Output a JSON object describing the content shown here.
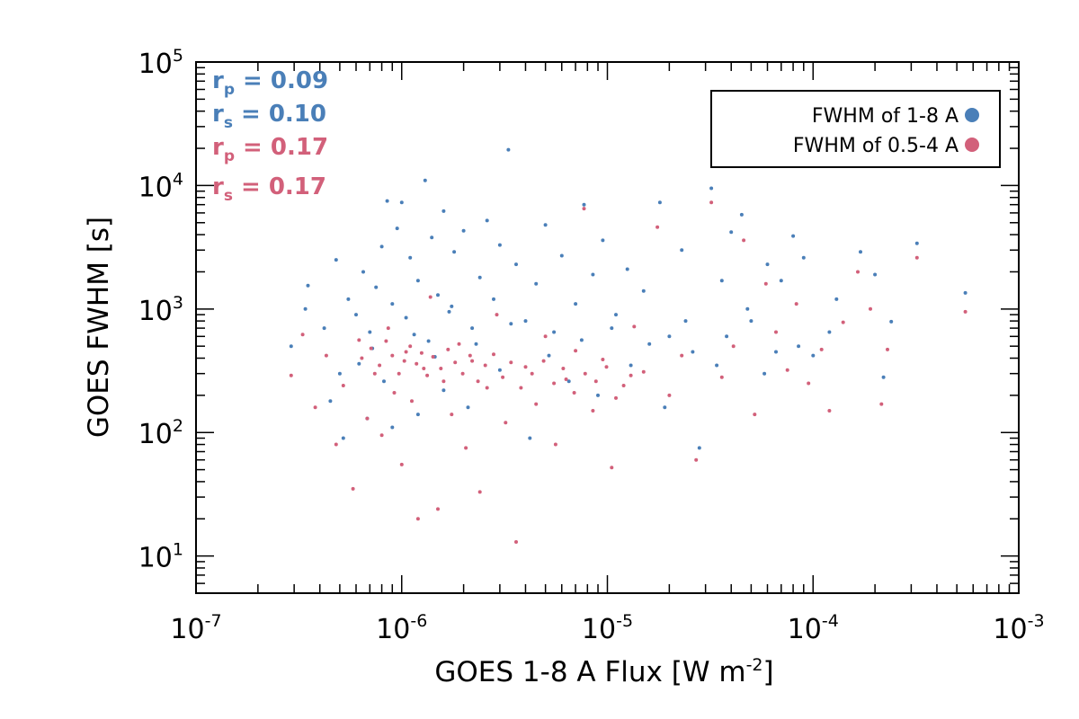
{
  "colors": {
    "series1": "#4a7fb8",
    "series2": "#d2607a",
    "axis": "#000000"
  },
  "chart_data": {
    "type": "scatter",
    "xlabel": "GOES 1-8 A Flux [W m",
    "xlabel_sup": "-2",
    "xlabel_end": "]",
    "ylabel": "GOES FWHM [s]",
    "xscale": "log",
    "yscale": "log",
    "xlim": [
      1e-07,
      0.001
    ],
    "ylim": [
      5,
      100000
    ],
    "xticks": [
      {
        "base": "10",
        "exp": "-7",
        "value": 1e-07
      },
      {
        "base": "10",
        "exp": "-6",
        "value": 1e-06
      },
      {
        "base": "10",
        "exp": "-5",
        "value": 1e-05
      },
      {
        "base": "10",
        "exp": "-4",
        "value": 0.0001
      },
      {
        "base": "10",
        "exp": "-3",
        "value": 0.001
      }
    ],
    "yticks": [
      {
        "base": "10",
        "exp": "1",
        "value": 10
      },
      {
        "base": "10",
        "exp": "2",
        "value": 100
      },
      {
        "base": "10",
        "exp": "3",
        "value": 1000
      },
      {
        "base": "10",
        "exp": "4",
        "value": 10000
      },
      {
        "base": "10",
        "exp": "5",
        "value": 100000
      }
    ],
    "legend": {
      "position": "top-right"
    },
    "series": [
      {
        "name": "FWHM of 1-8 A",
        "color": "#4a7fb8",
        "stats": [
          {
            "label": "r",
            "sub": "p",
            "text": " = 0.09"
          },
          {
            "label": "r",
            "sub": "s",
            "text": " = 0.10"
          }
        ],
        "points": [
          [
            2.9e-07,
            500
          ],
          [
            3.4e-07,
            1000
          ],
          [
            3.5e-07,
            1550
          ],
          [
            4.2e-07,
            700
          ],
          [
            4.8e-07,
            2500
          ],
          [
            5e-07,
            300
          ],
          [
            5.5e-07,
            1200
          ],
          [
            6e-07,
            900
          ],
          [
            6.5e-07,
            2000
          ],
          [
            7e-07,
            650
          ],
          [
            7.5e-07,
            1500
          ],
          [
            8e-07,
            3200
          ],
          [
            8.5e-07,
            7500
          ],
          [
            9e-07,
            1100
          ],
          [
            9.5e-07,
            4500
          ],
          [
            1e-06,
            7300
          ],
          [
            1.05e-06,
            850
          ],
          [
            1.1e-06,
            2600
          ],
          [
            1.2e-06,
            1700
          ],
          [
            1.3e-06,
            11000
          ],
          [
            1.35e-06,
            550
          ],
          [
            1.4e-06,
            3800
          ],
          [
            1.5e-06,
            1300
          ],
          [
            1.6e-06,
            6200
          ],
          [
            1.7e-06,
            950
          ],
          [
            1.8e-06,
            2900
          ],
          [
            2e-06,
            4300
          ],
          [
            2.2e-06,
            700
          ],
          [
            2.4e-06,
            1800
          ],
          [
            2.6e-06,
            5200
          ],
          [
            2.8e-06,
            1200
          ],
          [
            3e-06,
            3300
          ],
          [
            3.3e-06,
            19500
          ],
          [
            3.6e-06,
            2300
          ],
          [
            4e-06,
            800
          ],
          [
            4.5e-06,
            1600
          ],
          [
            5e-06,
            4800
          ],
          [
            5.5e-06,
            650
          ],
          [
            6e-06,
            2700
          ],
          [
            7e-06,
            1100
          ],
          [
            7.7e-06,
            7000
          ],
          [
            8.5e-06,
            1900
          ],
          [
            9.5e-06,
            3600
          ],
          [
            1.1e-05,
            900
          ],
          [
            1.25e-05,
            2100
          ],
          [
            1.5e-05,
            1400
          ],
          [
            1.8e-05,
            7300
          ],
          [
            2e-05,
            600
          ],
          [
            2.3e-05,
            3000
          ],
          [
            2.8e-05,
            75
          ],
          [
            3.2e-05,
            9500
          ],
          [
            3.6e-05,
            1700
          ],
          [
            4e-05,
            4200
          ],
          [
            4.5e-05,
            5800
          ],
          [
            5e-05,
            800
          ],
          [
            6e-05,
            2300
          ],
          [
            7e-05,
            1700
          ],
          [
            8e-05,
            3900
          ],
          [
            9e-05,
            2600
          ],
          [
            0.0001,
            420
          ],
          [
            0.00013,
            1200
          ],
          [
            0.00017,
            2900
          ],
          [
            0.0002,
            1900
          ],
          [
            0.00022,
            280
          ],
          [
            0.00024,
            790
          ],
          [
            0.00032,
            3400
          ],
          [
            0.00055,
            1350
          ],
          [
            4.5e-07,
            180
          ],
          [
            5.2e-07,
            90
          ],
          [
            6.8e-07,
            130
          ],
          [
            9e-07,
            110
          ],
          [
            1.2e-06,
            140
          ],
          [
            1.6e-06,
            220
          ],
          [
            2.1e-06,
            160
          ],
          [
            3e-06,
            320
          ],
          [
            4.2e-06,
            90
          ],
          [
            6.5e-06,
            260
          ],
          [
            9e-06,
            200
          ],
          [
            1.3e-05,
            350
          ],
          [
            1.9e-05,
            160
          ],
          [
            2.6e-05,
            450
          ],
          [
            3.8e-05,
            600
          ],
          [
            5.8e-05,
            300
          ],
          [
            8.5e-05,
            500
          ],
          [
            0.00012,
            650
          ],
          [
            6.2e-07,
            360
          ],
          [
            7.2e-07,
            480
          ],
          [
            8.2e-07,
            260
          ],
          [
            1.15e-06,
            620
          ],
          [
            1.45e-06,
            410
          ],
          [
            1.75e-06,
            1050
          ],
          [
            2.3e-06,
            520
          ],
          [
            3.4e-06,
            760
          ],
          [
            5.2e-06,
            420
          ],
          [
            7.5e-06,
            560
          ],
          [
            1.05e-05,
            700
          ],
          [
            1.6e-05,
            520
          ],
          [
            2.4e-05,
            800
          ],
          [
            3.4e-05,
            350
          ],
          [
            4.8e-05,
            1000
          ],
          [
            6.6e-05,
            450
          ]
        ]
      },
      {
        "name": "FWHM of 0.5-4 A",
        "color": "#d2607a",
        "stats": [
          {
            "label": "r",
            "sub": "p",
            "text": " = 0.17"
          },
          {
            "label": "r",
            "sub": "s",
            "text": " = 0.17"
          }
        ],
        "points": [
          [
            2.9e-07,
            290
          ],
          [
            3.3e-07,
            620
          ],
          [
            3.8e-07,
            160
          ],
          [
            4.3e-07,
            420
          ],
          [
            4.8e-07,
            80
          ],
          [
            5.2e-07,
            240
          ],
          [
            5.8e-07,
            35
          ],
          [
            6.2e-07,
            560
          ],
          [
            6.8e-07,
            130
          ],
          [
            7.4e-07,
            300
          ],
          [
            8e-07,
            95
          ],
          [
            8.6e-07,
            700
          ],
          [
            9.2e-07,
            210
          ],
          [
            1e-06,
            55
          ],
          [
            1.05e-06,
            450
          ],
          [
            1.12e-06,
            180
          ],
          [
            1.2e-06,
            20
          ],
          [
            1.28e-06,
            330
          ],
          [
            1.38e-06,
            1250
          ],
          [
            1.5e-06,
            24
          ],
          [
            1.6e-06,
            260
          ],
          [
            1.75e-06,
            140
          ],
          [
            1.9e-06,
            520
          ],
          [
            2.05e-06,
            75
          ],
          [
            2.2e-06,
            380
          ],
          [
            2.4e-06,
            33
          ],
          [
            2.6e-06,
            230
          ],
          [
            2.9e-06,
            900
          ],
          [
            3.2e-06,
            120
          ],
          [
            3.6e-06,
            13
          ],
          [
            4e-06,
            340
          ],
          [
            4.5e-06,
            170
          ],
          [
            5e-06,
            600
          ],
          [
            5.6e-06,
            80
          ],
          [
            6.3e-06,
            270
          ],
          [
            7e-06,
            460
          ],
          [
            7.7e-06,
            6500
          ],
          [
            8.5e-06,
            150
          ],
          [
            9.5e-06,
            390
          ],
          [
            1.05e-05,
            52
          ],
          [
            1.2e-05,
            240
          ],
          [
            1.35e-05,
            720
          ],
          [
            1.5e-05,
            310
          ],
          [
            1.75e-05,
            4600
          ],
          [
            2e-05,
            200
          ],
          [
            2.3e-05,
            420
          ],
          [
            2.7e-05,
            60
          ],
          [
            3.2e-05,
            7300
          ],
          [
            3.6e-05,
            280
          ],
          [
            4.1e-05,
            500
          ],
          [
            4.6e-05,
            3600
          ],
          [
            5.2e-05,
            140
          ],
          [
            5.9e-05,
            1600
          ],
          [
            6.6e-05,
            650
          ],
          [
            7.5e-05,
            320
          ],
          [
            8.3e-05,
            1100
          ],
          [
            9.5e-05,
            250
          ],
          [
            0.00011,
            470
          ],
          [
            0.00012,
            150
          ],
          [
            0.00014,
            780
          ],
          [
            0.000165,
            2000
          ],
          [
            0.00019,
            1000
          ],
          [
            0.000215,
            170
          ],
          [
            0.00023,
            470
          ],
          [
            0.00032,
            2600
          ],
          [
            0.00055,
            950
          ],
          [
            6.4e-07,
            400
          ],
          [
            7.1e-07,
            480
          ],
          [
            7.8e-07,
            350
          ],
          [
            8.4e-07,
            550
          ],
          [
            9e-07,
            420
          ],
          [
            9.7e-07,
            300
          ],
          [
            1.03e-06,
            380
          ],
          [
            1.1e-06,
            500
          ],
          [
            1.18e-06,
            360
          ],
          [
            1.25e-06,
            440
          ],
          [
            1.33e-06,
            290
          ],
          [
            1.42e-06,
            410
          ],
          [
            1.55e-06,
            330
          ],
          [
            1.68e-06,
            470
          ],
          [
            1.82e-06,
            370
          ],
          [
            1.98e-06,
            300
          ],
          [
            2.15e-06,
            420
          ],
          [
            2.35e-06,
            260
          ],
          [
            2.55e-06,
            350
          ],
          [
            2.8e-06,
            430
          ],
          [
            3.1e-06,
            280
          ],
          [
            3.4e-06,
            370
          ],
          [
            3.8e-06,
            230
          ],
          [
            4.3e-06,
            300
          ],
          [
            4.9e-06,
            380
          ],
          [
            5.5e-06,
            250
          ],
          [
            6.1e-06,
            330
          ],
          [
            6.9e-06,
            210
          ],
          [
            7.8e-06,
            300
          ],
          [
            8.8e-06,
            260
          ],
          [
            9.9e-06,
            340
          ],
          [
            1.1e-05,
            190
          ],
          [
            1.3e-05,
            290
          ]
        ]
      }
    ]
  }
}
